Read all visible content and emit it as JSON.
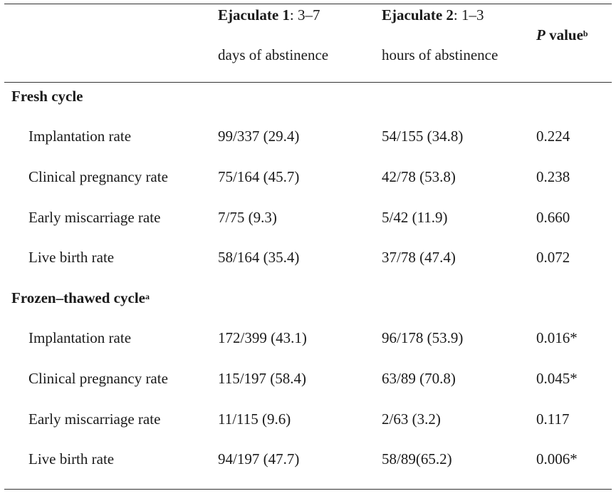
{
  "header": {
    "col1_bold": "Ejaculate 1",
    "col1_rest": ": 3–7",
    "col1_line2": "days of abstinence",
    "col2_bold": "Ejaculate 2",
    "col2_rest": ": 1–3",
    "col2_line2": "hours of abstinence",
    "col3_italic": "P",
    "col3_bold": " value",
    "col3_sup": "b"
  },
  "sections": [
    {
      "title": "Fresh cycle",
      "title_sup": "",
      "rows": [
        {
          "label": "Implantation rate",
          "e1": "99/337 (29.4)",
          "e2": "54/155 (34.8)",
          "p": "0.224"
        },
        {
          "label": "Clinical pregnancy rate",
          "e1": "75/164 (45.7)",
          "e2": "42/78 (53.8)",
          "p": "0.238"
        },
        {
          "label": "Early miscarriage rate",
          "e1": "7/75 (9.3)",
          "e2": "5/42 (11.9)",
          "p": "0.660"
        },
        {
          "label": "Live birth rate",
          "e1": "58/164 (35.4)",
          "e2": "37/78 (47.4)",
          "p": "0.072"
        }
      ]
    },
    {
      "title": "Frozen–thawed cycle",
      "title_sup": "a",
      "rows": [
        {
          "label": "Implantation rate",
          "e1": "172/399 (43.1)",
          "e2": "96/178 (53.9)",
          "p": "0.016*"
        },
        {
          "label": "Clinical pregnancy rate",
          "e1": "115/197 (58.4)",
          "e2": "63/89 (70.8)",
          "p": "0.045*"
        },
        {
          "label": "Early miscarriage rate",
          "e1": "11/115 (9.6)",
          "e2": "2/63 (3.2)",
          "p": "0.117"
        },
        {
          "label": "Live birth rate",
          "e1": "94/197 (47.7)",
          "e2": "58/89(65.2)",
          "p": "0.006*"
        }
      ]
    }
  ]
}
